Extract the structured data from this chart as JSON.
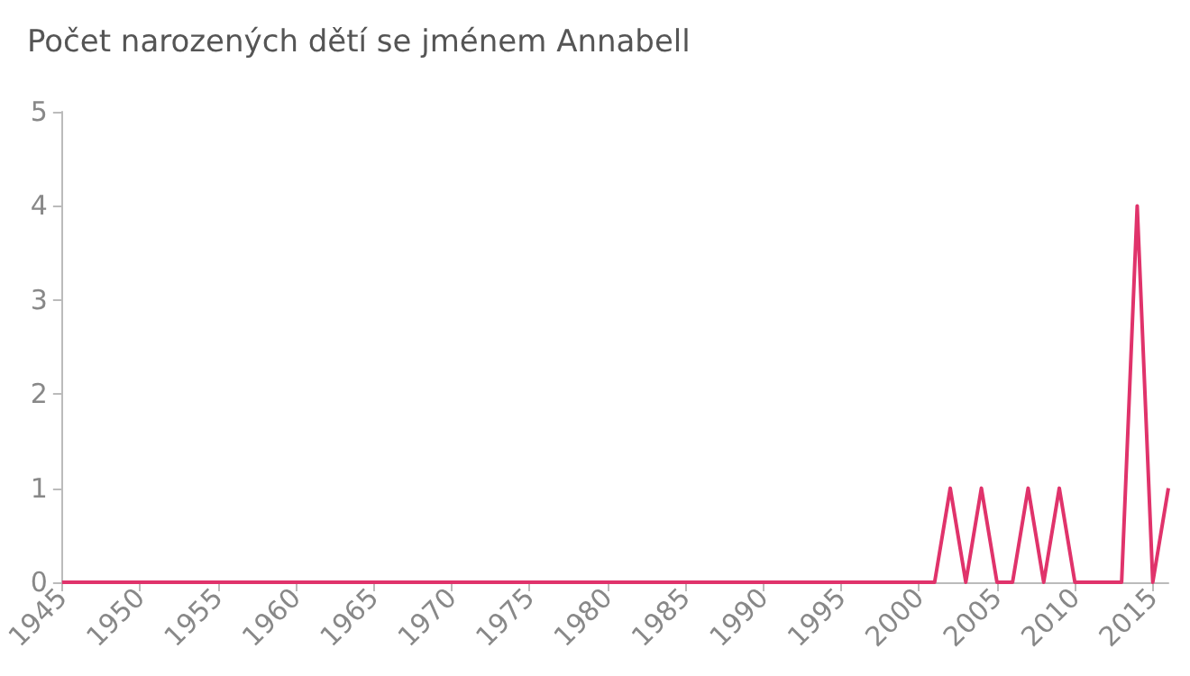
{
  "chart_data": {
    "type": "line",
    "title": "Počet narozených dětí se jménem Annabell",
    "x": [
      1945,
      1946,
      1947,
      1948,
      1949,
      1950,
      1951,
      1952,
      1953,
      1954,
      1955,
      1956,
      1957,
      1958,
      1959,
      1960,
      1961,
      1962,
      1963,
      1964,
      1965,
      1966,
      1967,
      1968,
      1969,
      1970,
      1971,
      1972,
      1973,
      1974,
      1975,
      1976,
      1977,
      1978,
      1979,
      1980,
      1981,
      1982,
      1983,
      1984,
      1985,
      1986,
      1987,
      1988,
      1989,
      1990,
      1991,
      1992,
      1993,
      1994,
      1995,
      1996,
      1997,
      1998,
      1999,
      2000,
      2001,
      2002,
      2003,
      2004,
      2005,
      2006,
      2007,
      2008,
      2009,
      2010,
      2011,
      2012,
      2013,
      2014,
      2015,
      2016
    ],
    "series": [
      {
        "color": "#e0336b",
        "values": [
          0,
          0,
          0,
          0,
          0,
          0,
          0,
          0,
          0,
          0,
          0,
          0,
          0,
          0,
          0,
          0,
          0,
          0,
          0,
          0,
          0,
          0,
          0,
          0,
          0,
          0,
          0,
          0,
          0,
          0,
          0,
          0,
          0,
          0,
          0,
          0,
          0,
          0,
          0,
          0,
          0,
          0,
          0,
          0,
          0,
          0,
          0,
          0,
          0,
          0,
          0,
          0,
          0,
          0,
          0,
          0,
          0,
          1,
          0,
          1,
          0,
          0,
          1,
          0,
          1,
          0,
          0,
          0,
          0,
          4,
          0,
          1
        ]
      }
    ],
    "xlim": [
      1945,
      2016
    ],
    "xticks": [
      1945,
      1950,
      1955,
      1960,
      1965,
      1970,
      1975,
      1980,
      1985,
      1990,
      1995,
      2000,
      2005,
      2010,
      2015
    ],
    "ylim": [
      0,
      5
    ],
    "yticks": [
      0,
      1,
      2,
      3,
      4,
      5
    ],
    "grid": false,
    "marker": "none",
    "line_style": "solid"
  }
}
